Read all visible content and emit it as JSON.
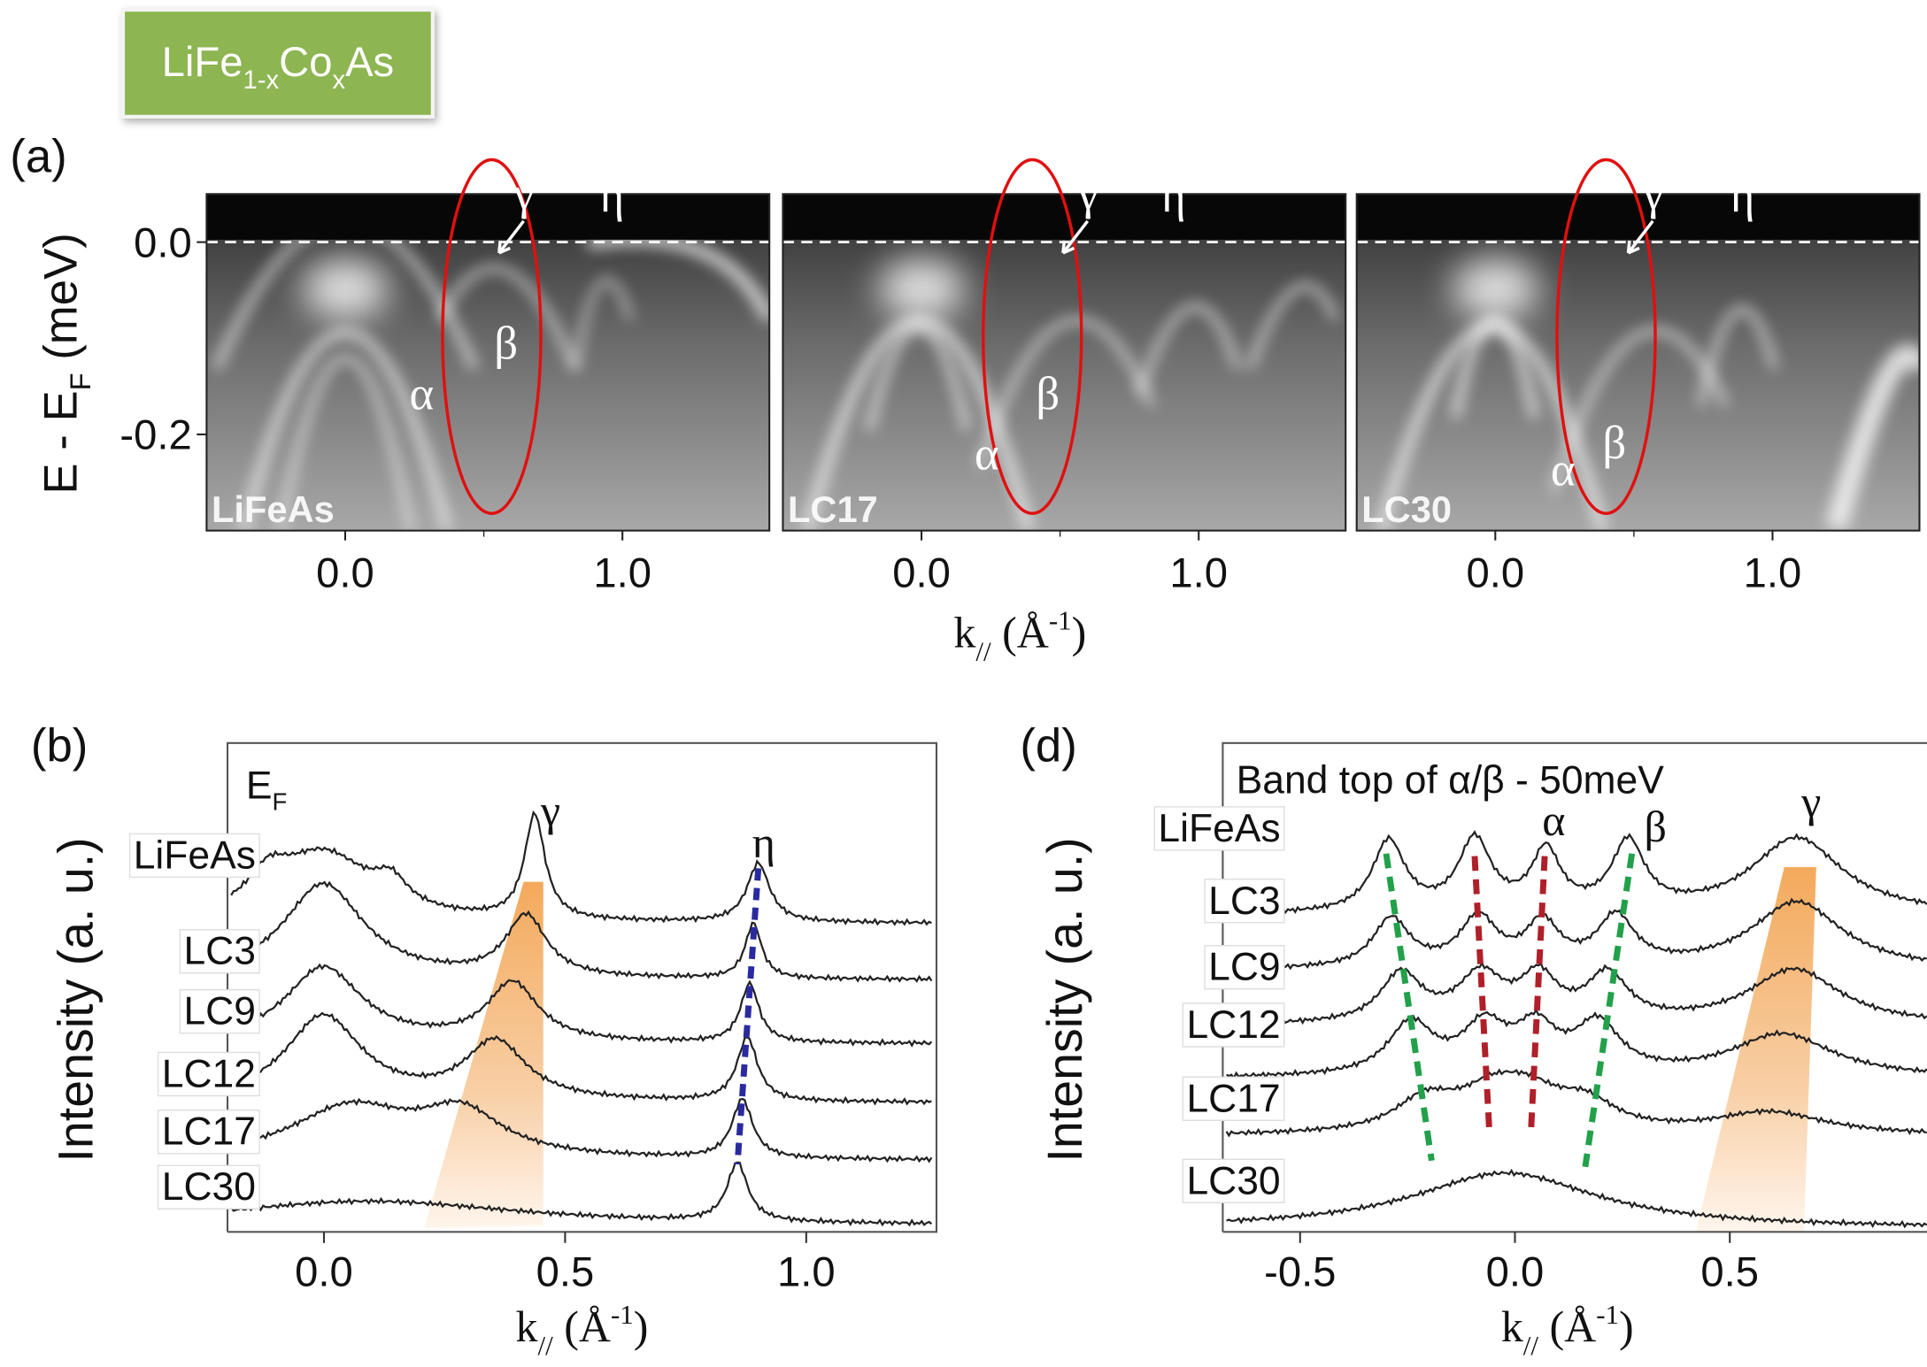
{
  "sample_label": {
    "parts": [
      "LiFe",
      "1-x",
      "Co",
      "x",
      "As"
    ]
  },
  "panel_a": {
    "label": "(a)",
    "ylabel": {
      "parts": [
        "E - E",
        "F",
        " (meV)"
      ]
    },
    "ylim": [
      -0.3,
      0.05
    ],
    "yticks": [
      {
        "value": 0,
        "label": "0.0"
      },
      -0.2
    ],
    "xlim": [
      -0.5,
      1.53
    ],
    "xticks": [
      {
        "value": 0,
        "label": "0.0"
      },
      {
        "value": 1,
        "label": "1.0"
      }
    ],
    "xlabel": {
      "parts": [
        "k",
        "//",
        " (Å",
        "-1",
        ")"
      ]
    },
    "images": [
      {
        "name": "LiFeAs",
        "labels": [
          "α",
          "β",
          "γ",
          "η"
        ]
      },
      {
        "name": "LC17",
        "labels": [
          "α",
          "β",
          "γ",
          "η"
        ]
      },
      {
        "name": "LC30",
        "labels": [
          "α",
          "β",
          "γ",
          "η"
        ]
      }
    ]
  },
  "panel_b": {
    "label": "(b)",
    "title": {
      "parts": [
        "E",
        "F"
      ]
    },
    "ylabel": "Intensity (a. u.)",
    "xlim": [
      -0.2,
      1.27
    ],
    "xticks": [
      {
        "value": 0,
        "label": "0.0"
      },
      0.5,
      {
        "value": 1,
        "label": "1.0"
      }
    ],
    "xlabel": {
      "parts": [
        "k",
        "//",
        " (Å",
        "-1",
        ")"
      ]
    },
    "samples": [
      "LiFeAs",
      "LC3",
      "LC9",
      "LC12",
      "LC17",
      "LC30"
    ],
    "peak_labels": [
      "γ",
      "η"
    ]
  },
  "panel_d": {
    "label": "(d)",
    "title": "Band top of α/β - 50meV",
    "ylabel": "Intensity (a. u.)",
    "xlim": [
      -0.68,
      1.05
    ],
    "xticks": [
      -0.5,
      {
        "value": 0,
        "label": "0.0"
      },
      0.5
    ],
    "xlabel": {
      "parts": [
        "k",
        "//",
        " (Å",
        "-1",
        ")"
      ]
    },
    "samples": [
      "LiFeAs",
      "LC3",
      "LC9",
      "LC12",
      "LC17",
      "LC30"
    ],
    "peak_labels": [
      "α",
      "β",
      "γ"
    ]
  }
}
